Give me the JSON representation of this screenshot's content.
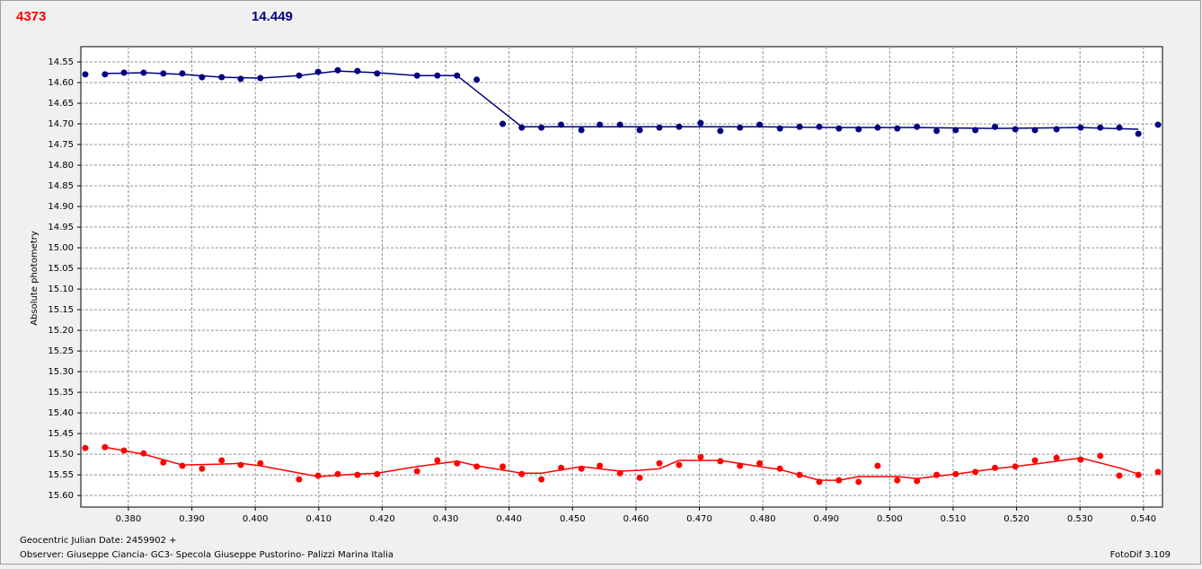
{
  "chart_data": {
    "type": "scatter",
    "header_left": "4373",
    "header_left_color": "#ff0000",
    "header_right": "14.449",
    "header_right_color": "#000080",
    "ylabel": "Absolute photometry",
    "footer_date": "Geocentric Julian Date: 2459902 +",
    "footer_observer": "Observer: Giuseppe Ciancia- GC3- Specola Giuseppe Pustorino- Palizzi Marina Italia",
    "footer_version": "FotoDif 3.109",
    "xlim": [
      0.3725,
      0.543
    ],
    "ylim": [
      14.513,
      15.628
    ],
    "y_inverted": true,
    "grid": true,
    "xticks": [
      {
        "value": 0.38,
        "label": "0.380"
      },
      {
        "value": 0.39,
        "label": "0.390"
      },
      {
        "value": 0.4,
        "label": "0.400"
      },
      {
        "value": 0.41,
        "label": "0.410"
      },
      {
        "value": 0.42,
        "label": "0.420"
      },
      {
        "value": 0.43,
        "label": "0.430"
      },
      {
        "value": 0.44,
        "label": "0.440"
      },
      {
        "value": 0.45,
        "label": "0.450"
      },
      {
        "value": 0.46,
        "label": "0.460"
      },
      {
        "value": 0.47,
        "label": "0.470"
      },
      {
        "value": 0.48,
        "label": "0.480"
      },
      {
        "value": 0.49,
        "label": "0.490"
      },
      {
        "value": 0.5,
        "label": "0.500"
      },
      {
        "value": 0.51,
        "label": "0.510"
      },
      {
        "value": 0.52,
        "label": "0.520"
      },
      {
        "value": 0.53,
        "label": "0.530"
      },
      {
        "value": 0.54,
        "label": "0.540"
      }
    ],
    "yticks": [
      14.55,
      {
        "value": 14.6,
        "label": "14.60"
      },
      14.65,
      {
        "value": 14.7,
        "label": "14.70"
      },
      14.75,
      {
        "value": 14.8,
        "label": "14.80"
      },
      14.85,
      {
        "value": 14.9,
        "label": "14.90"
      },
      14.95,
      {
        "value": 15,
        "label": "15.00"
      },
      15.05,
      {
        "value": 15.1,
        "label": "15.10"
      },
      15.15,
      {
        "value": 15.2,
        "label": "15.20"
      },
      15.25,
      {
        "value": 15.3,
        "label": "15.30"
      },
      15.35,
      {
        "value": 15.4,
        "label": "15.40"
      },
      15.45,
      {
        "value": 15.5,
        "label": "15.50"
      },
      15.55,
      {
        "value": 15.6,
        "label": "15.60"
      }
    ],
    "series": [
      {
        "color": "#000080",
        "mode": "markers",
        "x": [
          0.3732,
          0.3763,
          0.3793,
          0.3824,
          0.3855,
          0.3885,
          0.3916,
          0.3947,
          0.3977,
          0.4008,
          0.4069,
          0.4099,
          0.413,
          0.4161,
          0.4192,
          0.4255,
          0.4287,
          0.4318,
          0.4349,
          0.439,
          0.442,
          0.4451,
          0.4482,
          0.4514,
          0.4543,
          0.4575,
          0.4606,
          0.4637,
          0.4668,
          0.4702,
          0.4733,
          0.4764,
          0.4795,
          0.4827,
          0.4858,
          0.4889,
          0.492,
          0.4951,
          0.4981,
          0.5012,
          0.5043,
          0.5074,
          0.5104,
          0.5135,
          0.5166,
          0.5198,
          0.5229,
          0.5263,
          0.5301,
          0.5332,
          0.5362,
          0.5392,
          0.5423
        ],
        "values": [
          14.58,
          14.58,
          14.576,
          14.576,
          14.578,
          14.578,
          14.587,
          14.587,
          14.591,
          14.589,
          14.583,
          14.574,
          14.57,
          14.572,
          14.578,
          14.583,
          14.583,
          14.583,
          14.593,
          14.7,
          14.709,
          14.709,
          14.702,
          14.715,
          14.702,
          14.702,
          14.715,
          14.709,
          14.707,
          14.698,
          14.717,
          14.709,
          14.702,
          14.711,
          14.707,
          14.707,
          14.711,
          14.713,
          14.709,
          14.711,
          14.707,
          14.717,
          14.715,
          14.715,
          14.707,
          14.713,
          14.715,
          14.713,
          14.709,
          14.709,
          14.709,
          14.724,
          14.702
        ]
      },
      {
        "color": "#000080",
        "mode": "line",
        "x": [
          0.3763,
          0.3824,
          0.3885,
          0.3947,
          0.4008,
          0.4069,
          0.413,
          0.4192,
          0.4255,
          0.4318,
          0.442,
          0.4545,
          0.4668,
          0.4795,
          0.492,
          0.5043,
          0.5166,
          0.5301,
          0.5392
        ],
        "values": [
          14.578,
          14.576,
          14.58,
          14.587,
          14.589,
          14.583,
          14.572,
          14.576,
          14.583,
          14.583,
          14.707,
          14.707,
          14.707,
          14.707,
          14.709,
          14.709,
          14.711,
          14.709,
          14.713
        ]
      },
      {
        "color": "#ff0000",
        "mode": "markers",
        "x": [
          0.3732,
          0.3763,
          0.3793,
          0.3824,
          0.3855,
          0.3885,
          0.3916,
          0.3947,
          0.3977,
          0.4008,
          0.4069,
          0.4099,
          0.413,
          0.4161,
          0.4192,
          0.4255,
          0.4287,
          0.4318,
          0.4349,
          0.439,
          0.442,
          0.4451,
          0.4482,
          0.4514,
          0.4543,
          0.4575,
          0.4606,
          0.4637,
          0.4668,
          0.4702,
          0.4733,
          0.4764,
          0.4795,
          0.4827,
          0.4858,
          0.4889,
          0.492,
          0.4951,
          0.4981,
          0.5012,
          0.5043,
          0.5074,
          0.5104,
          0.5135,
          0.5166,
          0.5198,
          0.5229,
          0.5263,
          0.5301,
          0.5332,
          0.5362,
          0.5392,
          0.5423
        ],
        "values": [
          15.485,
          15.483,
          15.491,
          15.498,
          15.52,
          15.528,
          15.535,
          15.515,
          15.526,
          15.522,
          15.561,
          15.552,
          15.548,
          15.55,
          15.548,
          15.541,
          15.515,
          15.522,
          15.53,
          15.53,
          15.548,
          15.561,
          15.533,
          15.535,
          15.528,
          15.546,
          15.557,
          15.522,
          15.526,
          15.507,
          15.517,
          15.528,
          15.522,
          15.535,
          15.55,
          15.567,
          15.563,
          15.567,
          15.528,
          15.563,
          15.565,
          15.55,
          15.548,
          15.543,
          15.533,
          15.53,
          15.515,
          15.509,
          15.513,
          15.504,
          15.552,
          15.55,
          15.543
        ]
      },
      {
        "color": "#ff0000",
        "mode": "line",
        "x": [
          0.3763,
          0.3824,
          0.3885,
          0.3947,
          0.3977,
          0.4008,
          0.4099,
          0.4161,
          0.4192,
          0.4255,
          0.4318,
          0.4349,
          0.442,
          0.4451,
          0.4514,
          0.4575,
          0.4606,
          0.4637,
          0.4668,
          0.4733,
          0.4795,
          0.4827,
          0.4889,
          0.492,
          0.4951,
          0.5013,
          0.5043,
          0.5104,
          0.5166,
          0.5229,
          0.5301,
          0.5362,
          0.5392
        ],
        "values": [
          15.483,
          15.5,
          15.526,
          15.524,
          15.522,
          15.528,
          15.554,
          15.548,
          15.546,
          15.53,
          15.517,
          15.528,
          15.546,
          15.546,
          15.53,
          15.541,
          15.539,
          15.535,
          15.515,
          15.515,
          15.53,
          15.537,
          15.563,
          15.563,
          15.554,
          15.554,
          15.559,
          15.548,
          15.535,
          15.524,
          15.509,
          15.533,
          15.548
        ]
      }
    ]
  }
}
